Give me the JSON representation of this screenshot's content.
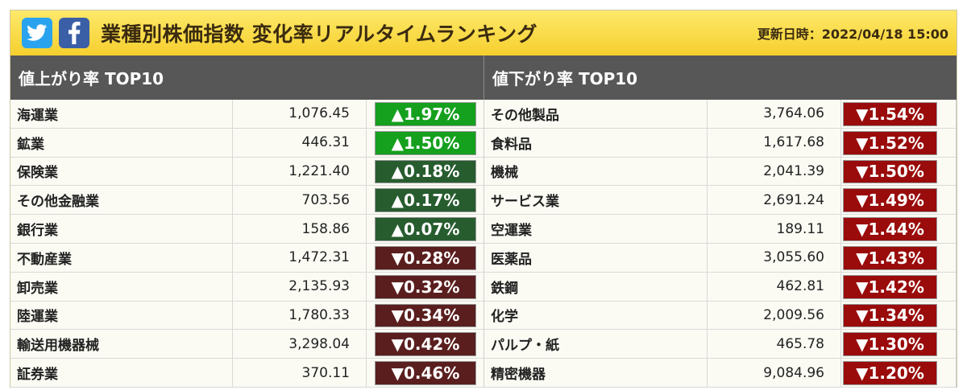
{
  "header": {
    "title": "業種別株価指数 変化率リアルタイムランキング",
    "updated": "更新日時：2022/04/18 15:00",
    "twitter_icon": "twitter-icon",
    "facebook_icon": "facebook-icon"
  },
  "colors": {
    "up_strong": "#15a01e",
    "up_dark": "#275c2f",
    "down_dark": "#5a1e1e",
    "down_red": "#9a0b0b"
  },
  "gainers": {
    "heading": "値上がり率 TOP10",
    "rows": [
      {
        "name": "海運業",
        "value": "1,076.45",
        "pct": "▲1.97%",
        "tone": "up_strong"
      },
      {
        "name": "鉱業",
        "value": "446.31",
        "pct": "▲1.50%",
        "tone": "up_strong"
      },
      {
        "name": "保険業",
        "value": "1,221.40",
        "pct": "▲0.18%",
        "tone": "up_dark"
      },
      {
        "name": "その他金融業",
        "value": "703.56",
        "pct": "▲0.17%",
        "tone": "up_dark"
      },
      {
        "name": "銀行業",
        "value": "158.86",
        "pct": "▲0.07%",
        "tone": "up_dark"
      },
      {
        "name": "不動産業",
        "value": "1,472.31",
        "pct": "▼0.28%",
        "tone": "down_dark"
      },
      {
        "name": "卸売業",
        "value": "2,135.93",
        "pct": "▼0.32%",
        "tone": "down_dark"
      },
      {
        "name": "陸運業",
        "value": "1,780.33",
        "pct": "▼0.34%",
        "tone": "down_dark"
      },
      {
        "name": "輸送用機器械",
        "value": "3,298.04",
        "pct": "▼0.42%",
        "tone": "down_dark"
      },
      {
        "name": "証券業",
        "value": "370.11",
        "pct": "▼0.46%",
        "tone": "down_dark"
      }
    ]
  },
  "losers": {
    "heading": "値下がり率 TOP10",
    "rows": [
      {
        "name": "その他製品",
        "value": "3,764.06",
        "pct": "▼1.54%",
        "tone": "down_red"
      },
      {
        "name": "食料品",
        "value": "1,617.68",
        "pct": "▼1.52%",
        "tone": "down_red"
      },
      {
        "name": "機械",
        "value": "2,041.39",
        "pct": "▼1.50%",
        "tone": "down_red"
      },
      {
        "name": "サービス業",
        "value": "2,691.24",
        "pct": "▼1.49%",
        "tone": "down_red"
      },
      {
        "name": "空運業",
        "value": "189.11",
        "pct": "▼1.44%",
        "tone": "down_red"
      },
      {
        "name": "医薬品",
        "value": "3,055.60",
        "pct": "▼1.43%",
        "tone": "down_red"
      },
      {
        "name": "鉄鋼",
        "value": "462.81",
        "pct": "▼1.42%",
        "tone": "down_red"
      },
      {
        "name": "化学",
        "value": "2,009.56",
        "pct": "▼1.34%",
        "tone": "down_red"
      },
      {
        "name": "パルプ・紙",
        "value": "465.78",
        "pct": "▼1.30%",
        "tone": "down_red"
      },
      {
        "name": "精密機器",
        "value": "9,084.96",
        "pct": "▼1.20%",
        "tone": "down_red"
      }
    ]
  }
}
